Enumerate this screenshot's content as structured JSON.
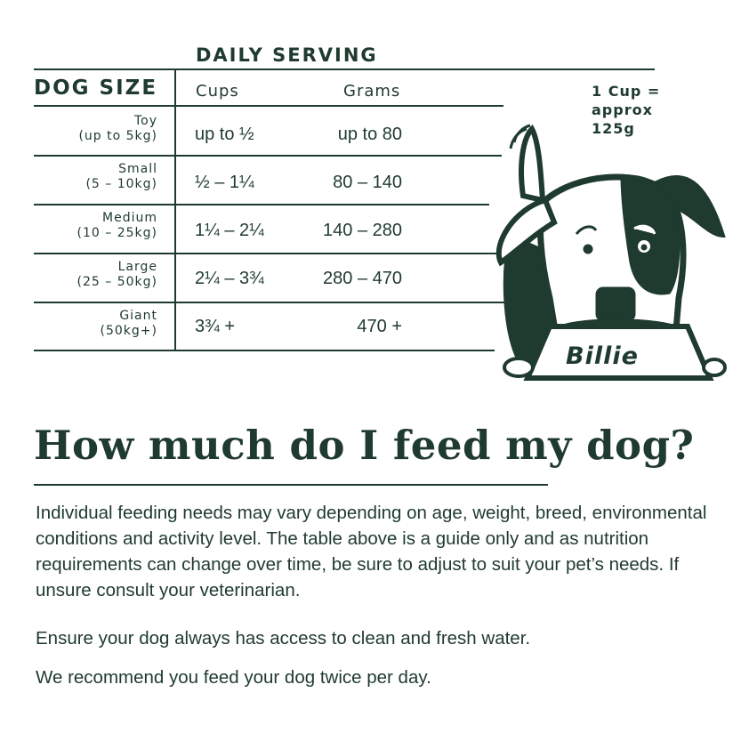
{
  "table": {
    "header_group": "DAILY SERVING",
    "col_size": "DOG SIZE",
    "col_cups": "Cups",
    "col_grams": "Grams",
    "rows": [
      {
        "size": "Toy",
        "range": "(up to 5kg)",
        "cups": "up to ½",
        "grams": "up to 80"
      },
      {
        "size": "Small",
        "range": "(5 – 10kg)",
        "cups": "½ – 1¼",
        "grams": "80 – 140"
      },
      {
        "size": "Medium",
        "range": "(10 – 25kg)",
        "cups": "1¼ – 2¼",
        "grams": "140 – 280"
      },
      {
        "size": "Large",
        "range": "(25 – 50kg)",
        "cups": "2¼ – 3¾",
        "grams": "280 – 470"
      },
      {
        "size": "Giant",
        "range": "(50kg+)",
        "cups": "3¾ +",
        "grams": "470 +"
      }
    ]
  },
  "note": {
    "line1": "1 Cup =",
    "line2": "approx",
    "line3": "125g"
  },
  "illustration": {
    "bowl_label": "Billie",
    "icon": "dog-eating-from-bowl"
  },
  "heading": "How much do I feed my dog?",
  "body": {
    "p1": "Individual feeding needs may vary depending on age, weight, breed, environmental conditions and activity level. The table above is a guide only and as nutrition requirements can change over time, be sure to adjust to suit your pet’s needs. If unsure consult your veterinarian.",
    "p2": "Ensure your dog always has access to clean and fresh water.",
    "p3": "We recommend you feed your dog twice per day."
  },
  "colors": {
    "ink": "#1f3a2e",
    "background": "#ffffff"
  }
}
